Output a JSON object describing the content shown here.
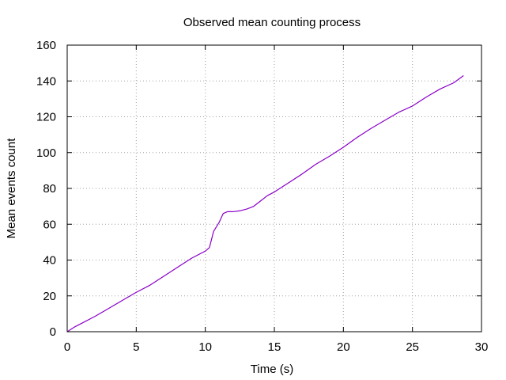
{
  "colors": {
    "series": "#8a00c8",
    "grid": "#a0a0a0",
    "axis": "#000000",
    "background": "#ffffff"
  },
  "chart_data": {
    "type": "line",
    "title": "Observed mean counting process",
    "xlabel": "Time (s)",
    "ylabel": "Mean events count",
    "xlim": [
      0,
      30
    ],
    "ylim": [
      0,
      160
    ],
    "xticks": [
      0,
      5,
      10,
      15,
      20,
      25,
      30
    ],
    "yticks": [
      0,
      20,
      40,
      60,
      80,
      100,
      120,
      140,
      160
    ],
    "grid": true,
    "legend": "none",
    "series": [
      {
        "x": [
          0,
          0.5,
          1,
          2,
          3,
          4,
          5,
          6,
          7,
          8,
          9,
          10,
          10.3,
          10.6,
          11,
          11.3,
          11.6,
          12,
          12.5,
          13,
          13.5,
          14,
          14.5,
          15,
          16,
          17,
          18,
          19,
          20,
          21,
          22,
          23,
          24,
          25,
          26,
          27,
          28,
          28.7
        ],
        "y": [
          0,
          2.5,
          4.5,
          8.5,
          13,
          17.5,
          22,
          26,
          31,
          36,
          41,
          45,
          47,
          56,
          61,
          66,
          67,
          67,
          67.5,
          68.5,
          70,
          73,
          76,
          78,
          83,
          88,
          93.5,
          98,
          103,
          108.5,
          113.5,
          118,
          122.5,
          126,
          131,
          135.5,
          139,
          143
        ]
      }
    ]
  }
}
